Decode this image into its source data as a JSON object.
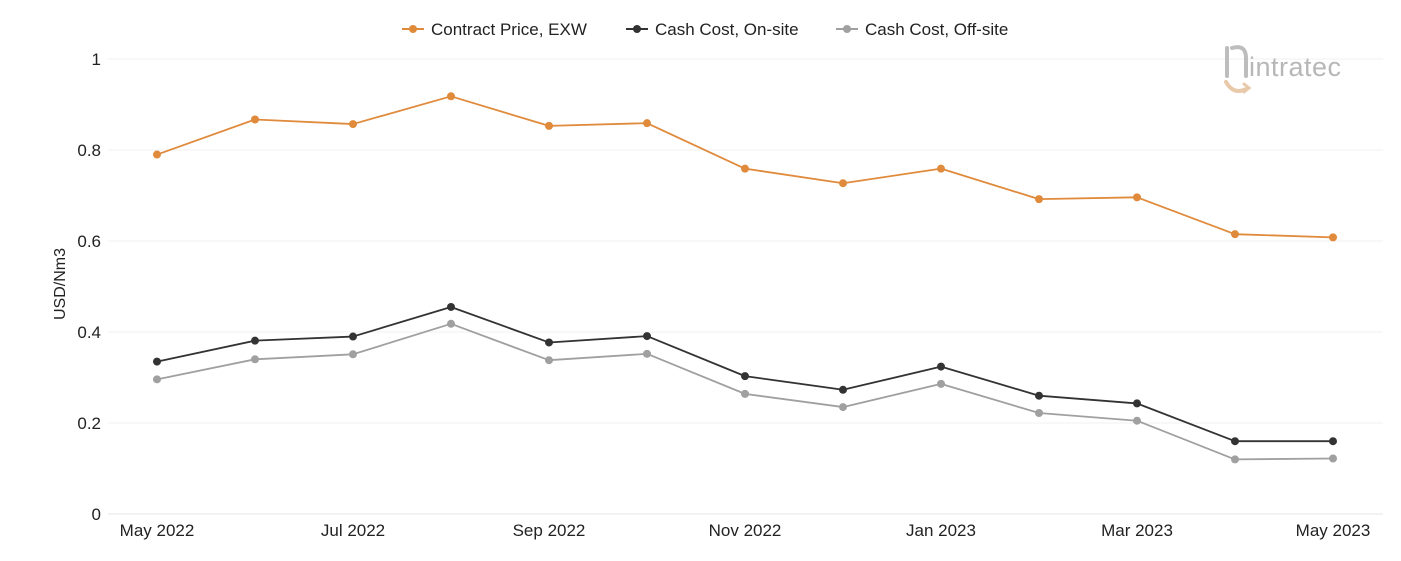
{
  "chart_data": {
    "type": "line",
    "title": "",
    "xlabel": "",
    "ylabel": "USD/Nm3",
    "ylim": [
      0,
      1
    ],
    "yticks": [
      "0",
      "0.2",
      "0.4",
      "0.6",
      "0.8",
      "1"
    ],
    "x": [
      "May 2022",
      "Jun 2022",
      "Jul 2022",
      "Aug 2022",
      "Sep 2022",
      "Oct 2022",
      "Nov 2022",
      "Dec 2022",
      "Jan 2023",
      "Feb 2023",
      "Mar 2023",
      "Apr 2023",
      "May 2023"
    ],
    "xtick_labels": [
      "May 2022",
      "Jul 2022",
      "Sep 2022",
      "Nov 2022",
      "Jan 2023",
      "Mar 2023",
      "May 2023"
    ],
    "grid": true,
    "legend_position": "top-center",
    "series": [
      {
        "name": "Contract Price, EXW",
        "color": "#e08a3c",
        "values": [
          0.79,
          0.867,
          0.857,
          0.918,
          0.853,
          0.859,
          0.759,
          0.727,
          0.759,
          0.692,
          0.696,
          0.615,
          0.608
        ]
      },
      {
        "name": "Cash Cost, On-site",
        "color": "#333333",
        "values": [
          0.335,
          0.381,
          0.39,
          0.455,
          0.377,
          0.391,
          0.303,
          0.273,
          0.324,
          0.26,
          0.243,
          0.16,
          0.16
        ]
      },
      {
        "name": "Cash Cost, Off-site",
        "color": "#a0a0a0",
        "values": [
          0.296,
          0.34,
          0.351,
          0.418,
          0.338,
          0.352,
          0.264,
          0.235,
          0.286,
          0.222,
          0.205,
          0.12,
          0.122
        ]
      }
    ]
  },
  "logo": {
    "text": "intratec",
    "icon": "intratec-logo-icon"
  }
}
